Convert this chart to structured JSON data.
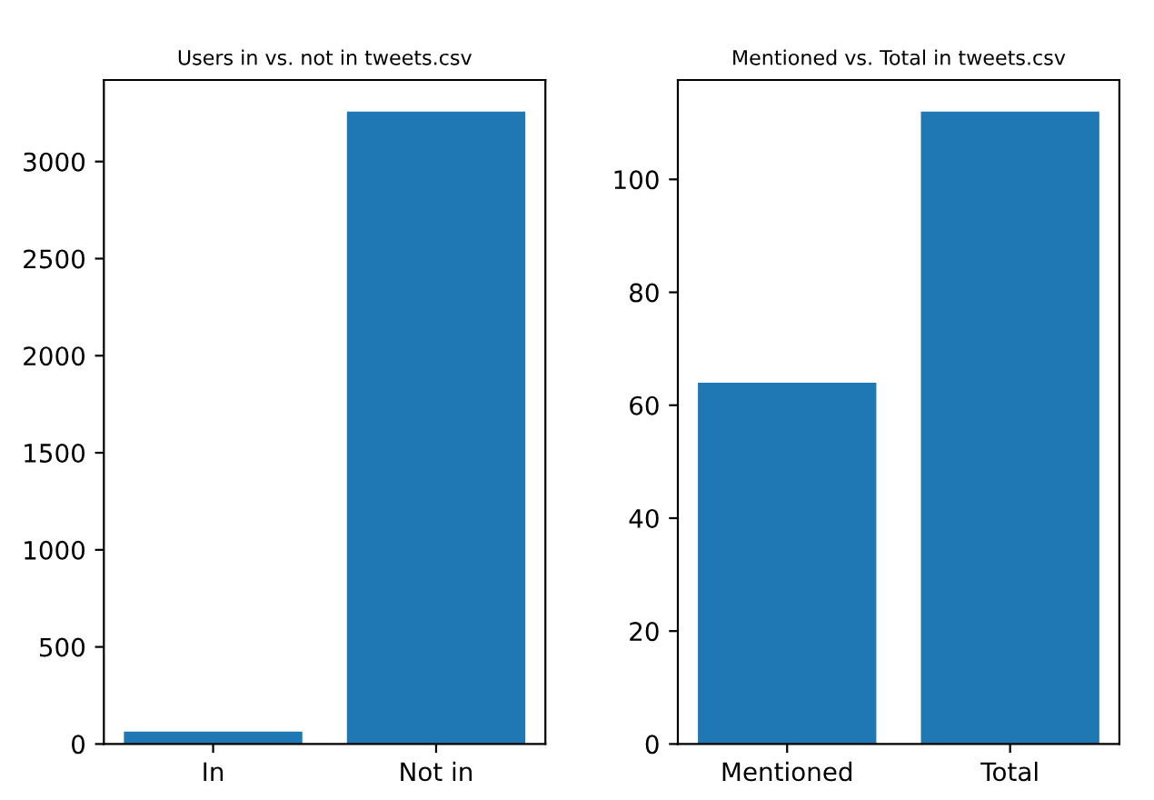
{
  "chart_data": [
    {
      "type": "bar",
      "title": "Users in vs. not in tweets.csv",
      "categories": [
        "In",
        "Not in"
      ],
      "values": [
        64,
        3257
      ],
      "color": "#1f77b4",
      "ylim": [
        0,
        3420
      ],
      "yticks": [
        0,
        500,
        1000,
        1500,
        2000,
        2500,
        3000
      ]
    },
    {
      "type": "bar",
      "title": "Mentioned vs. Total in tweets.csv",
      "categories": [
        "Mentioned",
        "Total"
      ],
      "values": [
        64,
        112
      ],
      "color": "#1f77b4",
      "ylim": [
        0,
        117.6
      ],
      "yticks": [
        0,
        20,
        40,
        60,
        80,
        100
      ]
    }
  ]
}
